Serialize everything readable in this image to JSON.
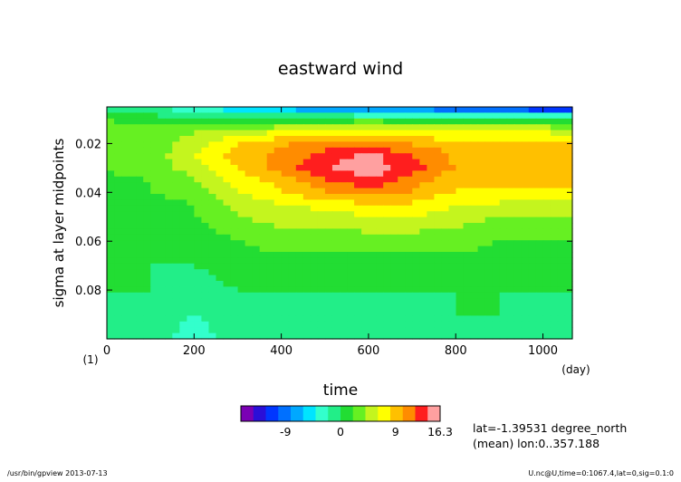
{
  "chart_data": {
    "type": "heatmap",
    "title": "eastward wind",
    "xlabel": "time",
    "x_unit": "(day)",
    "ylabel": "sigma at layer midpoints",
    "y_unit": "(1)",
    "xlim": [
      0,
      1067.4
    ],
    "ylim": [
      0.1,
      0.005
    ],
    "y_inverted": true,
    "x_ticks": [
      0,
      200,
      400,
      600,
      800,
      1000
    ],
    "x_tick_labels": [
      "0",
      "200",
      "400",
      "600",
      "800",
      "1000"
    ],
    "y_ticks": [
      0.02,
      0.04,
      0.06,
      0.08
    ],
    "y_tick_labels": [
      "0.02",
      "0.04",
      "0.06",
      "0.08"
    ],
    "color_levels": [
      -16.3,
      -14.25,
      -12.2,
      -10.2,
      -8.15,
      -6.1,
      -4.1,
      -2.05,
      0,
      2.05,
      4.1,
      6.1,
      8.15,
      10.2,
      12.2,
      14.25,
      16.3
    ],
    "palette": [
      "#7a00b4",
      "#2a0fd8",
      "#0036ff",
      "#0070ff",
      "#00a8ff",
      "#00e4ff",
      "#33ffcc",
      "#22ee88",
      "#22dd33",
      "#66f022",
      "#c4f51e",
      "#ffff00",
      "#ffc000",
      "#ff8c00",
      "#ff1e1e",
      "#ffa0a0"
    ],
    "colorbar_labels": [
      "-9",
      "0",
      "9",
      "16.3"
    ],
    "colorbar_label_values": [
      -9,
      0,
      9,
      16.3
    ],
    "annotation_lines": [
      "lat=-1.39531 degree_north",
      "(mean) lon:0..357.188"
    ],
    "profile_sigma": [
      0.005,
      0.01,
      0.015,
      0.02,
      0.025,
      0.03,
      0.035,
      0.04,
      0.045,
      0.05,
      0.06,
      0.07,
      0.08,
      0.09,
      0.1
    ],
    "profile_time": [
      0,
      100,
      200,
      300,
      400,
      500,
      600,
      700,
      800,
      900,
      1000,
      1067.4
    ],
    "wind_values": [
      [
        -2,
        -2,
        -4,
        -6,
        -8,
        -9,
        -10,
        -10,
        -12,
        -13,
        -14,
        -14
      ],
      [
        2,
        1,
        1,
        0,
        1,
        1,
        1,
        1,
        1,
        1,
        1,
        1
      ],
      [
        3,
        3,
        4,
        5,
        6,
        6,
        7,
        6,
        6,
        6,
        6,
        5
      ],
      [
        3,
        3,
        5,
        8,
        10,
        11,
        12,
        10,
        9,
        9,
        8,
        8
      ],
      [
        2,
        3,
        6,
        9,
        11,
        13,
        15,
        12,
        10,
        10,
        10,
        10
      ],
      [
        2,
        3,
        5,
        8,
        11,
        14,
        16,
        13,
        10,
        10,
        10,
        10
      ],
      [
        2,
        2,
        4,
        7,
        9,
        12,
        14,
        11,
        9,
        9,
        9,
        9
      ],
      [
        1,
        2,
        3,
        6,
        8,
        10,
        11,
        10,
        8,
        7,
        7,
        7
      ],
      [
        1,
        1,
        2,
        5,
        6,
        7,
        8,
        8,
        6,
        6,
        5,
        5
      ],
      [
        1,
        1,
        2,
        4,
        5,
        5,
        6,
        6,
        5,
        4,
        4,
        4
      ],
      [
        0,
        1,
        1,
        2,
        3,
        3,
        3,
        3,
        3,
        2,
        2,
        2
      ],
      [
        0,
        0,
        0,
        1,
        1,
        1,
        1,
        1,
        1,
        1,
        1,
        1
      ],
      [
        0,
        0,
        -1,
        0,
        0,
        0,
        0,
        0,
        0,
        0,
        0,
        0
      ],
      [
        0,
        -1,
        -2,
        -1,
        0,
        -1,
        0,
        -1,
        0,
        0,
        -1,
        0
      ],
      [
        0,
        -1,
        -3,
        -1,
        -1,
        -1,
        -1,
        -1,
        -1,
        -1,
        -1,
        -1
      ]
    ]
  },
  "footer": {
    "left": "/usr/bin/gpview  2013-07-13",
    "right": "U.nc@U,time=0:1067.4,lat=0,sig=0.1:0"
  }
}
